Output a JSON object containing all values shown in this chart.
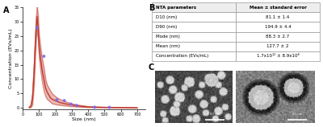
{
  "panel_A_label": "A",
  "panel_B_label": "B",
  "panel_C_label": "C",
  "xlabel": "Size (nm)",
  "ylabel": "Concentration (EVs/mL)",
  "xlim": [
    0,
    750
  ],
  "ylim": [
    -0.5,
    35
  ],
  "yticks": [
    0,
    5,
    10,
    15,
    20,
    25,
    30,
    35
  ],
  "xticks": [
    0,
    100,
    200,
    300,
    400,
    500,
    600,
    700
  ],
  "line_color": "#c0392b",
  "fill_color": "#c0392b",
  "fill_alpha": 0.35,
  "scatter_color": "#7b68ee",
  "scatter_size": 8,
  "background_color": "#ffffff",
  "table_headers": [
    "NTA parameters",
    "Mean ± standard error"
  ],
  "table_rows": [
    [
      "D10 (nm)",
      "81.1 ± 1.4"
    ],
    [
      "D90 (nm)",
      "194.9 ± 4.4"
    ],
    [
      "Mode (nm)",
      "88.3 ± 2.7"
    ],
    [
      "Mean (nm)",
      "127.7 ± 2"
    ],
    [
      "Concentration (EVs/mL)",
      "1.7x10¹² ± 8.9x10⁸"
    ]
  ],
  "curve_x": [
    40,
    50,
    60,
    70,
    80,
    88,
    95,
    100,
    110,
    120,
    130,
    140,
    150,
    160,
    170,
    180,
    200,
    220,
    250,
    280,
    300,
    320,
    350,
    380,
    400,
    450,
    500,
    550,
    600,
    650,
    700
  ],
  "curve_y": [
    0.1,
    0.5,
    3,
    12,
    25,
    32,
    28,
    22,
    17,
    13,
    10,
    7,
    5.5,
    4.5,
    3.5,
    3.0,
    2.5,
    2.0,
    1.5,
    1.2,
    1.0,
    0.8,
    0.6,
    0.4,
    0.3,
    0.2,
    0.15,
    0.1,
    0.08,
    0.05,
    0.02
  ],
  "curve_y_upper": [
    0.3,
    1.0,
    5,
    16,
    29,
    36,
    32,
    26,
    21,
    17,
    14,
    10,
    8,
    7,
    6,
    5.0,
    4.0,
    3.2,
    2.5,
    1.8,
    1.5,
    1.2,
    0.9,
    0.7,
    0.5,
    0.35,
    0.25,
    0.18,
    0.14,
    0.09,
    0.05
  ],
  "curve_y_lower": [
    0.0,
    0.1,
    1,
    8,
    21,
    28,
    24,
    18,
    13,
    9,
    6,
    4,
    3,
    2.5,
    2.0,
    1.5,
    1.2,
    1.0,
    0.8,
    0.6,
    0.5,
    0.4,
    0.3,
    0.2,
    0.15,
    0.1,
    0.08,
    0.05,
    0.03,
    0.02,
    0.01
  ],
  "scatter_points_x": [
    88,
    130,
    210,
    255,
    295,
    330,
    440,
    530
  ],
  "scatter_points_y": [
    28,
    18,
    2.8,
    2.5,
    1.3,
    0.8,
    0.2,
    0.15
  ],
  "scalebar1_text": "50 nm",
  "scalebar2_text": "25 nm"
}
